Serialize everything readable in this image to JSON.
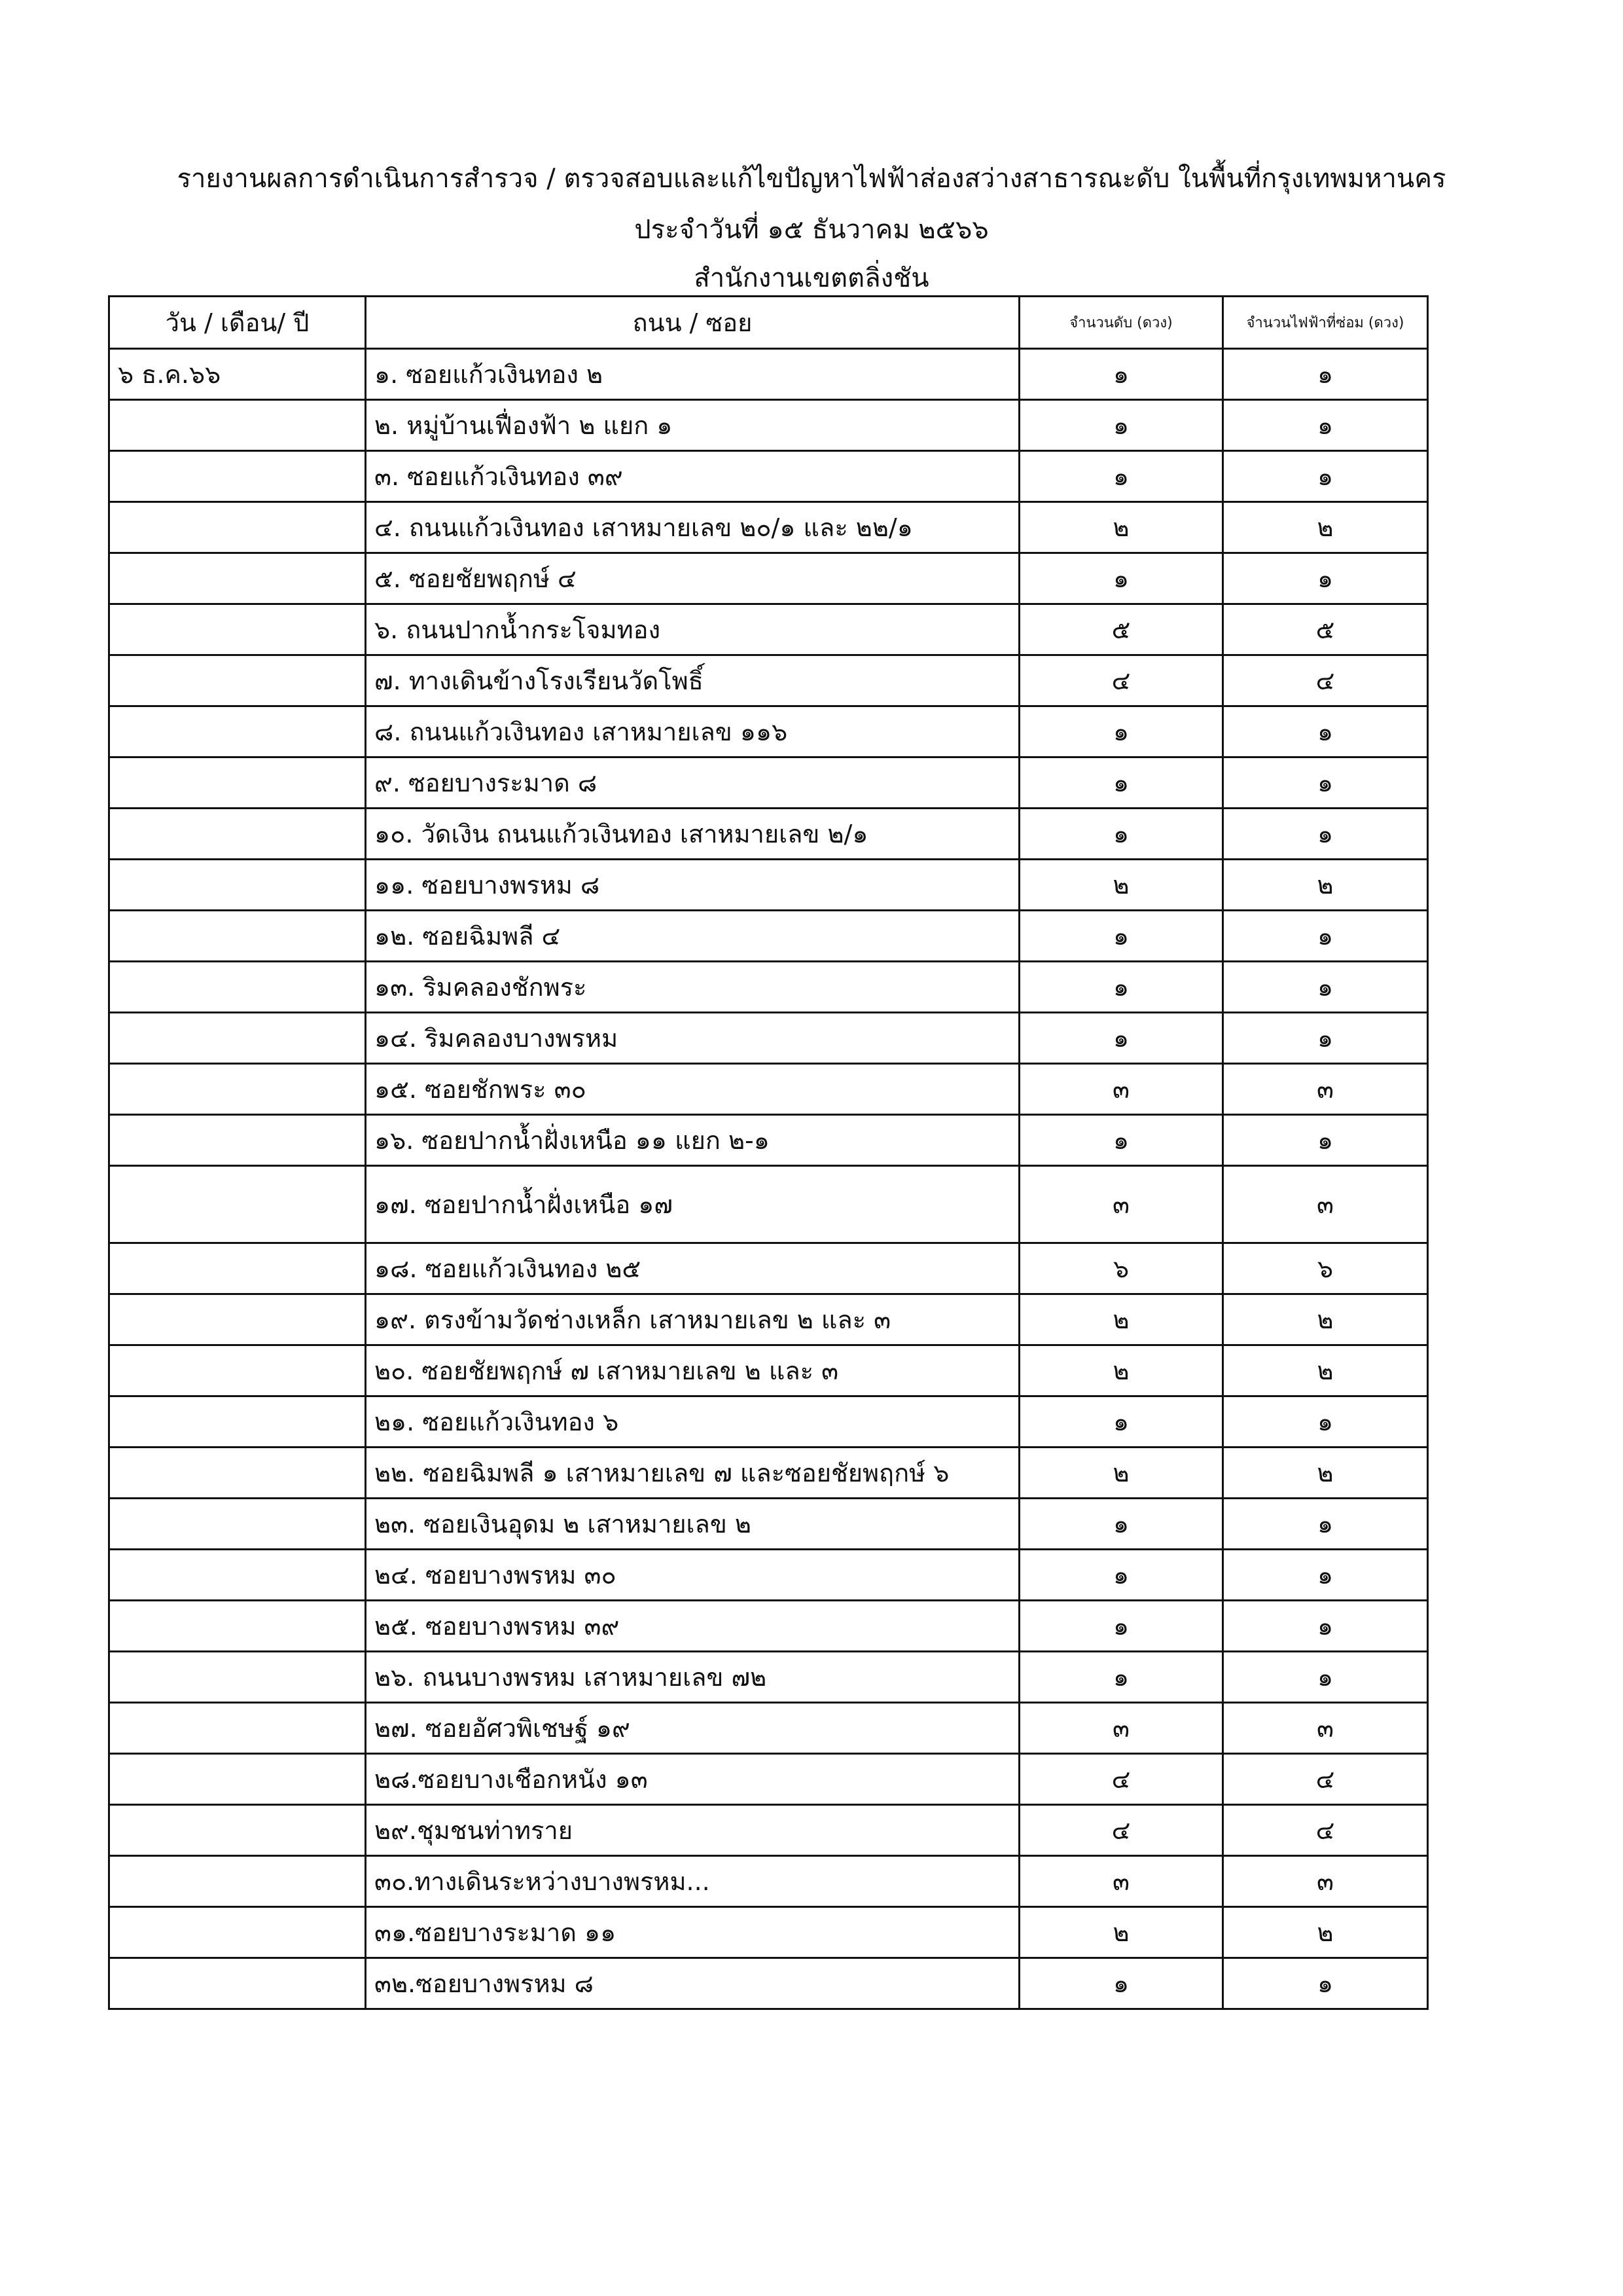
{
  "header": {
    "title": "รายงานผลการดำเนินการสำรวจ / ตรวจสอบและแก้ไขปัญหาไฟฟ้าส่องสว่างสาธารณะดับ ในพื้นที่กรุงเทพมหานคร",
    "date_line": "ประจำวันที่ ๑๕ ธันวาคม ๒๕๖๖",
    "office": "สำนักงานเขตตลิ่งชัน"
  },
  "table": {
    "columns": [
      "วัน / เดือน/ ปี",
      "ถนน / ซอย",
      "จำนวนดับ (ดวง)",
      "จำนวนไฟฟ้าที่ซ่อม (ดวง)"
    ],
    "rows": [
      {
        "date": "๖ ธ.ค.๖๖",
        "road": "๑.  ซอยแก้วเงินทอง ๒",
        "out": "๑",
        "repaired": "๑"
      },
      {
        "road": "๒.  หมู่บ้านเฟื่องฟ้า ๒ แยก ๑",
        "out": "๑",
        "repaired": "๑"
      },
      {
        "road": "๓.  ซอยแก้วเงินทอง ๓๙",
        "out": "๑",
        "repaired": "๑"
      },
      {
        "road": "๔.  ถนนแก้วเงินทอง เสาหมายเลข ๒๐/๑ และ ๒๒/๑",
        "out": "๒",
        "repaired": "๒"
      },
      {
        "road": "๕.  ซอยชัยพฤกษ์ ๔",
        "out": "๑",
        "repaired": "๑"
      },
      {
        "road": "๖.  ถนนปากน้ำกระโจมทอง",
        "out": "๕",
        "repaired": "๕"
      },
      {
        "road": "๗.  ทางเดินข้างโรงเรียนวัดโพธิ์",
        "out": "๔",
        "repaired": "๔"
      },
      {
        "road": "๘.  ถนนแก้วเงินทอง เสาหมายเลข ๑๑๖",
        "out": "๑",
        "repaired": "๑"
      },
      {
        "road": "๙.  ซอยบางระมาด ๘",
        "out": "๑",
        "repaired": "๑"
      },
      {
        "road": "๑๐. วัดเงิน ถนนแก้วเงินทอง เสาหมายเลข ๒/๑",
        "out": "๑",
        "repaired": "๑"
      },
      {
        "road": "๑๑. ซอยบางพรหม ๘",
        "out": "๒",
        "repaired": "๒"
      },
      {
        "road": "๑๒. ซอยฉิมพลี ๔",
        "out": "๑",
        "repaired": "๑"
      },
      {
        "road": "๑๓. ริมคลองชักพระ",
        "out": "๑",
        "repaired": "๑"
      },
      {
        "road": "๑๔. ริมคลองบางพรหม",
        "out": "๑",
        "repaired": "๑"
      },
      {
        "road": "๑๕. ซอยชักพระ ๓๐",
        "out": "๓",
        "repaired": "๓"
      },
      {
        "road": "๑๖. ซอยปากน้ำฝั่งเหนือ ๑๑ แยก ๒-๑",
        "out": "๑",
        "repaired": "๑"
      },
      {
        "road": "๑๗. ซอยปากน้ำฝั่งเหนือ ๑๗",
        "out": "๓",
        "repaired": "๓"
      },
      {
        "road": "๑๘. ซอยแก้วเงินทอง ๒๕",
        "out": "๖",
        "repaired": "๖"
      },
      {
        "road": "๑๙. ตรงข้ามวัดช่างเหล็ก เสาหมายเลข ๒ และ ๓",
        "out": "๒",
        "repaired": "๒"
      },
      {
        "road": "๒๐. ซอยชัยพฤกษ์ ๗ เสาหมายเลข ๒ และ ๓",
        "out": "๒",
        "repaired": "๒"
      },
      {
        "road": "๒๑. ซอยแก้วเงินทอง ๖",
        "out": "๑",
        "repaired": "๑"
      },
      {
        "road": "๒๒. ซอยฉิมพลี ๑ เสาหมายเลข ๗  และซอยชัยพฤกษ์ ๖",
        "out": "๒",
        "repaired": "๒"
      },
      {
        "road": "๒๓. ซอยเงินอุดม ๒ เสาหมายเลข ๒",
        "out": "๑",
        "repaired": "๑"
      },
      {
        "road": "๒๔. ซอยบางพรหม ๓๐",
        "out": "๑",
        "repaired": "๑"
      },
      {
        "road": "๒๕.  ซอยบางพรหม ๓๙",
        "out": "๑",
        "repaired": "๑"
      },
      {
        "road": "๒๖. ถนนบางพรหม เสาหมายเลข ๗๒",
        "out": "๑",
        "repaired": "๑"
      },
      {
        "road": "๒๗. ซอยอัศวพิเชษฐ์ ๑๙",
        "out": "๓",
        "repaired": "๓"
      },
      {
        "road": "๒๘.ซอยบางเชือกหนัง ๑๓",
        "out": "๔",
        "repaired": "๔"
      },
      {
        "road": "๒๙.ชุมชนท่าทราย",
        "out": "๔",
        "repaired": "๔"
      },
      {
        "road": "๓๐.ทางเดินระหว่างบางพรหม...",
        "out": "๓",
        "repaired": "๓"
      },
      {
        "road": "๓๑.ซอยบางระมาด ๑๑",
        "out": "๒",
        "repaired": "๒"
      },
      {
        "road": "๓๒.ซอยบางพรหม ๘",
        "out": "๑",
        "repaired": "๑"
      }
    ]
  }
}
